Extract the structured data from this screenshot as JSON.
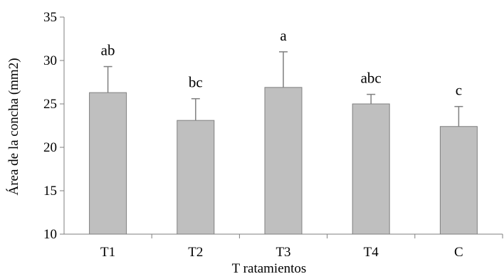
{
  "chart_data": {
    "type": "bar",
    "categories": [
      "T1",
      "T2",
      "T3",
      "T4",
      "C"
    ],
    "values": [
      26.3,
      23.1,
      26.9,
      25.0,
      22.4
    ],
    "error_upper": [
      3.0,
      2.5,
      4.1,
      1.1,
      2.3
    ],
    "significance_labels": [
      "ab",
      "bc",
      "a",
      "abc",
      "c"
    ],
    "xlabel": "T ratamientos",
    "ylabel": "Área de la concha (mm2)",
    "ylim": [
      10,
      35
    ],
    "yticks": [
      "10",
      "15",
      "20",
      "25",
      "30",
      "35"
    ],
    "grid": false,
    "colors": {
      "bar_fill": "#bfbfbf",
      "bar_stroke": "#808080",
      "axis": "#7f7f7f",
      "error_bar": "#7f7f7f"
    }
  }
}
